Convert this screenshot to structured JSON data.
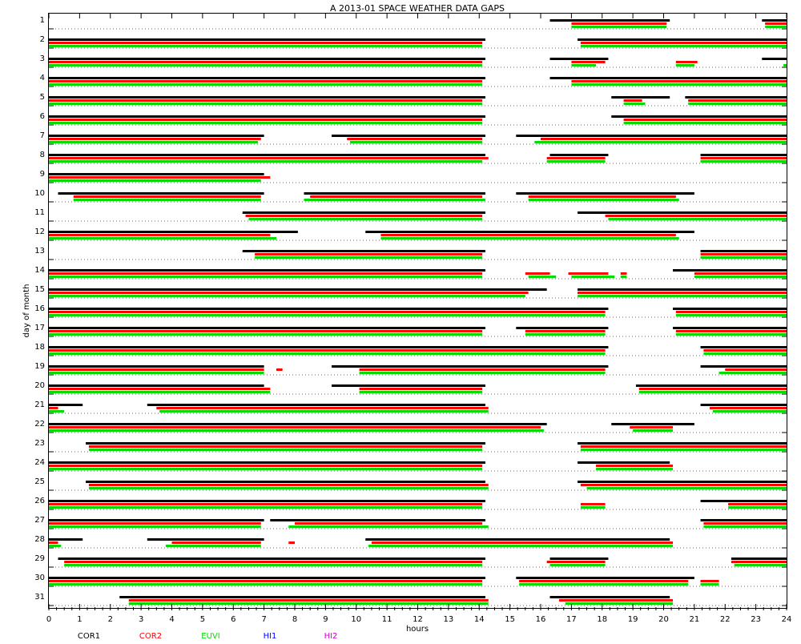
{
  "chart_data": {
    "type": "gantt",
    "title": "A  2013-01 SPACE WEATHER DATA GAPS",
    "xlabel": "hours",
    "ylabel": "day of month",
    "xlim": [
      0,
      24
    ],
    "x_ticks": [
      0,
      1,
      2,
      3,
      4,
      5,
      6,
      7,
      8,
      9,
      10,
      11,
      12,
      13,
      14,
      15,
      16,
      17,
      18,
      19,
      20,
      21,
      22,
      23,
      24
    ],
    "days": [
      1,
      2,
      3,
      4,
      5,
      6,
      7,
      8,
      9,
      10,
      11,
      12,
      13,
      14,
      15,
      16,
      17,
      18,
      19,
      20,
      21,
      22,
      23,
      24,
      25,
      26,
      27,
      28,
      29,
      30,
      31
    ],
    "grid": "dotted baseline per day",
    "legend_position": "bottom",
    "series": [
      {
        "name": "COR1",
        "color": "#000000"
      },
      {
        "name": "COR2",
        "color": "#ff0000"
      },
      {
        "name": "EUVI",
        "color": "#00dd00"
      },
      {
        "name": "HI1",
        "color": "#0000ff"
      },
      {
        "name": "HI2",
        "color": "#cc00cc"
      }
    ],
    "segments": {
      "1": {
        "COR1": [
          [
            16.3,
            20.2
          ],
          [
            23.2,
            24
          ]
        ],
        "COR2": [
          [
            17.0,
            20.1
          ],
          [
            23.3,
            24
          ]
        ],
        "EUVI": [
          [
            17.0,
            20.1
          ],
          [
            23.3,
            24
          ]
        ]
      },
      "2": {
        "COR1": [
          [
            0,
            14.2
          ],
          [
            17.2,
            24
          ]
        ],
        "COR2": [
          [
            0,
            14.1
          ],
          [
            17.3,
            24
          ]
        ],
        "EUVI": [
          [
            0,
            14.1
          ],
          [
            17.3,
            24
          ]
        ]
      },
      "3": {
        "COR1": [
          [
            0,
            14.2
          ],
          [
            16.3,
            18.2
          ],
          [
            23.2,
            24
          ]
        ],
        "COR2": [
          [
            0,
            14.1
          ],
          [
            17.0,
            18.1
          ],
          [
            20.4,
            21.1
          ]
        ],
        "EUVI": [
          [
            0,
            14.1
          ],
          [
            17.0,
            17.8
          ],
          [
            20.4,
            21.0
          ],
          [
            23.9,
            24
          ]
        ]
      },
      "4": {
        "COR1": [
          [
            0,
            14.2
          ],
          [
            16.3,
            24
          ]
        ],
        "COR2": [
          [
            0,
            14.1
          ],
          [
            17.0,
            24
          ]
        ],
        "EUVI": [
          [
            0,
            14.1
          ],
          [
            17.0,
            24
          ]
        ]
      },
      "5": {
        "COR1": [
          [
            0,
            14.2
          ],
          [
            18.3,
            20.2
          ],
          [
            20.7,
            24
          ]
        ],
        "COR2": [
          [
            0,
            14.1
          ],
          [
            18.7,
            19.3
          ],
          [
            20.8,
            24
          ]
        ],
        "EUVI": [
          [
            0,
            14.1
          ],
          [
            18.7,
            19.4
          ],
          [
            20.8,
            24
          ]
        ]
      },
      "6": {
        "COR1": [
          [
            0,
            14.2
          ],
          [
            18.3,
            24
          ]
        ],
        "COR2": [
          [
            0,
            14.1
          ],
          [
            18.7,
            24
          ]
        ],
        "EUVI": [
          [
            0,
            14.1
          ],
          [
            18.7,
            24
          ]
        ]
      },
      "7": {
        "COR1": [
          [
            0,
            7.0
          ],
          [
            9.2,
            14.2
          ],
          [
            15.2,
            24
          ]
        ],
        "COR2": [
          [
            0,
            6.9
          ],
          [
            9.7,
            14.1
          ],
          [
            16.0,
            24
          ]
        ],
        "EUVI": [
          [
            0,
            6.8
          ],
          [
            9.8,
            14.1
          ],
          [
            15.8,
            24
          ]
        ]
      },
      "8": {
        "COR1": [
          [
            0,
            14.2
          ],
          [
            16.3,
            18.2
          ],
          [
            21.2,
            24
          ]
        ],
        "COR2": [
          [
            0,
            14.3
          ],
          [
            16.2,
            18.1
          ],
          [
            21.2,
            24
          ]
        ],
        "EUVI": [
          [
            0,
            14.1
          ],
          [
            16.2,
            18.1
          ],
          [
            21.2,
            24
          ]
        ]
      },
      "9": {
        "COR1": [
          [
            0,
            7.0
          ]
        ],
        "COR2": [
          [
            0,
            7.2
          ]
        ],
        "EUVI": [
          [
            0,
            6.9
          ]
        ]
      },
      "10": {
        "COR1": [
          [
            0.3,
            7.0
          ],
          [
            8.3,
            14.2
          ],
          [
            15.2,
            21.0
          ]
        ],
        "COR2": [
          [
            0.8,
            6.9
          ],
          [
            8.5,
            14.1
          ],
          [
            15.6,
            20.4
          ]
        ],
        "EUVI": [
          [
            0.8,
            6.9
          ],
          [
            8.3,
            14.2
          ],
          [
            15.6,
            20.5
          ]
        ]
      },
      "11": {
        "COR1": [
          [
            6.3,
            14.2
          ],
          [
            17.2,
            24
          ]
        ],
        "COR2": [
          [
            6.4,
            14.1
          ],
          [
            18.1,
            24
          ]
        ],
        "EUVI": [
          [
            6.5,
            14.1
          ],
          [
            18.2,
            24
          ]
        ]
      },
      "12": {
        "COR1": [
          [
            0,
            8.1
          ],
          [
            10.3,
            21.0
          ]
        ],
        "COR2": [
          [
            0,
            7.2
          ],
          [
            10.8,
            20.4
          ]
        ],
        "EUVI": [
          [
            0,
            7.4
          ],
          [
            10.8,
            20.5
          ]
        ]
      },
      "13": {
        "COR1": [
          [
            6.3,
            14.2
          ],
          [
            21.2,
            24
          ]
        ],
        "COR2": [
          [
            6.7,
            14.1
          ],
          [
            21.2,
            24
          ]
        ],
        "EUVI": [
          [
            6.7,
            14.1
          ],
          [
            21.2,
            24
          ]
        ]
      },
      "14": {
        "COR1": [
          [
            0,
            14.2
          ],
          [
            20.3,
            24
          ]
        ],
        "COR2": [
          [
            0,
            14.1
          ],
          [
            15.5,
            16.3
          ],
          [
            16.9,
            18.2
          ],
          [
            18.6,
            18.8
          ],
          [
            21.0,
            24
          ]
        ],
        "EUVI": [
          [
            0,
            14.1
          ],
          [
            15.6,
            16.5
          ],
          [
            17.0,
            18.4
          ],
          [
            18.6,
            18.8
          ],
          [
            21.0,
            24
          ]
        ]
      },
      "15": {
        "COR1": [
          [
            0,
            16.2
          ],
          [
            17.2,
            24
          ]
        ],
        "COR2": [
          [
            0,
            15.6
          ],
          [
            17.2,
            24
          ]
        ],
        "EUVI": [
          [
            0,
            15.5
          ],
          [
            17.2,
            24
          ]
        ]
      },
      "16": {
        "COR1": [
          [
            0,
            18.2
          ],
          [
            20.3,
            24
          ]
        ],
        "COR2": [
          [
            0,
            18.1
          ],
          [
            20.4,
            24
          ]
        ],
        "EUVI": [
          [
            0,
            18.1
          ],
          [
            20.4,
            24
          ]
        ]
      },
      "17": {
        "COR1": [
          [
            0,
            14.2
          ],
          [
            15.2,
            18.2
          ],
          [
            20.3,
            24
          ]
        ],
        "COR2": [
          [
            0,
            14.1
          ],
          [
            15.5,
            18.1
          ],
          [
            20.4,
            24
          ]
        ],
        "EUVI": [
          [
            0,
            14.1
          ],
          [
            15.5,
            18.1
          ],
          [
            20.4,
            24
          ]
        ]
      },
      "18": {
        "COR1": [
          [
            0,
            18.2
          ],
          [
            21.2,
            24
          ]
        ],
        "COR2": [
          [
            0,
            18.1
          ],
          [
            21.3,
            24
          ]
        ],
        "EUVI": [
          [
            0,
            18.1
          ],
          [
            21.3,
            24
          ]
        ]
      },
      "19": {
        "COR1": [
          [
            0,
            7.0
          ],
          [
            9.2,
            18.2
          ],
          [
            21.2,
            24
          ]
        ],
        "COR2": [
          [
            0,
            7.0
          ],
          [
            7.4,
            7.6
          ],
          [
            10.1,
            18.1
          ],
          [
            22.0,
            24
          ]
        ],
        "EUVI": [
          [
            0,
            7.0
          ],
          [
            10.1,
            18.1
          ],
          [
            21.8,
            24
          ]
        ]
      },
      "20": {
        "COR1": [
          [
            0,
            7.0
          ],
          [
            9.2,
            14.2
          ],
          [
            19.1,
            24
          ]
        ],
        "COR2": [
          [
            0,
            7.2
          ],
          [
            10.1,
            14.1
          ],
          [
            19.2,
            24
          ]
        ],
        "EUVI": [
          [
            0,
            7.2
          ],
          [
            10.1,
            14.1
          ],
          [
            19.2,
            24
          ]
        ]
      },
      "21": {
        "COR1": [
          [
            0,
            1.1
          ],
          [
            3.2,
            14.2
          ],
          [
            21.2,
            24
          ]
        ],
        "COR2": [
          [
            0,
            0.3
          ],
          [
            3.5,
            14.3
          ],
          [
            21.5,
            24
          ]
        ],
        "EUVI": [
          [
            0,
            0.5
          ],
          [
            3.6,
            14.3
          ],
          [
            21.6,
            24
          ]
        ]
      },
      "22": {
        "COR1": [
          [
            0,
            16.2
          ],
          [
            18.3,
            21.0
          ]
        ],
        "COR2": [
          [
            0,
            16.0
          ],
          [
            18.9,
            20.3
          ]
        ],
        "EUVI": [
          [
            0,
            16.1
          ],
          [
            19.0,
            20.3
          ]
        ]
      },
      "23": {
        "COR1": [
          [
            1.2,
            14.2
          ],
          [
            17.2,
            24
          ]
        ],
        "COR2": [
          [
            1.3,
            14.1
          ],
          [
            17.3,
            24
          ]
        ],
        "EUVI": [
          [
            1.3,
            14.1
          ],
          [
            17.3,
            24
          ]
        ]
      },
      "24": {
        "COR1": [
          [
            0,
            14.2
          ],
          [
            17.2,
            20.2
          ]
        ],
        "COR2": [
          [
            0,
            14.1
          ],
          [
            17.8,
            20.3
          ]
        ],
        "EUVI": [
          [
            0,
            14.1
          ],
          [
            17.8,
            20.3
          ]
        ]
      },
      "25": {
        "COR1": [
          [
            1.2,
            14.2
          ],
          [
            17.2,
            24
          ]
        ],
        "COR2": [
          [
            1.3,
            14.3
          ],
          [
            17.3,
            24
          ]
        ],
        "EUVI": [
          [
            1.3,
            14.3
          ],
          [
            17.5,
            24
          ]
        ]
      },
      "26": {
        "COR1": [
          [
            0,
            14.2
          ],
          [
            21.2,
            24
          ]
        ],
        "COR2": [
          [
            0,
            14.1
          ],
          [
            17.3,
            18.1
          ],
          [
            22.1,
            24
          ]
        ],
        "EUVI": [
          [
            0,
            14.1
          ],
          [
            17.3,
            18.1
          ],
          [
            22.1,
            24
          ]
        ]
      },
      "27": {
        "COR1": [
          [
            0,
            7.0
          ],
          [
            7.2,
            14.2
          ],
          [
            21.2,
            24
          ]
        ],
        "COR2": [
          [
            0,
            6.9
          ],
          [
            8.0,
            14.1
          ],
          [
            21.3,
            24
          ]
        ],
        "EUVI": [
          [
            0,
            6.9
          ],
          [
            7.8,
            14.3
          ],
          [
            21.3,
            24
          ]
        ]
      },
      "28": {
        "COR1": [
          [
            0,
            1.1
          ],
          [
            3.2,
            7.0
          ],
          [
            10.3,
            20.2
          ]
        ],
        "COR2": [
          [
            0,
            0.3
          ],
          [
            4.0,
            6.9
          ],
          [
            7.8,
            8.0
          ],
          [
            10.5,
            20.3
          ]
        ],
        "EUVI": [
          [
            0,
            0.4
          ],
          [
            3.8,
            6.9
          ],
          [
            10.4,
            20.3
          ]
        ]
      },
      "29": {
        "COR1": [
          [
            0.3,
            14.2
          ],
          [
            16.3,
            18.2
          ],
          [
            22.2,
            24
          ]
        ],
        "COR2": [
          [
            0.5,
            14.1
          ],
          [
            16.2,
            18.1
          ],
          [
            22.2,
            24
          ]
        ],
        "EUVI": [
          [
            0.5,
            14.1
          ],
          [
            16.3,
            18.1
          ],
          [
            22.3,
            24
          ]
        ]
      },
      "30": {
        "COR1": [
          [
            0,
            14.2
          ],
          [
            15.2,
            21.0
          ]
        ],
        "COR2": [
          [
            0,
            14.1
          ],
          [
            15.3,
            20.8
          ],
          [
            21.2,
            21.8
          ]
        ],
        "EUVI": [
          [
            0,
            14.1
          ],
          [
            15.3,
            20.8
          ],
          [
            21.2,
            21.8
          ]
        ]
      },
      "31": {
        "COR1": [
          [
            2.3,
            14.2
          ],
          [
            16.3,
            20.2
          ]
        ],
        "COR2": [
          [
            2.6,
            14.3
          ],
          [
            16.6,
            20.3
          ]
        ],
        "EUVI": [
          [
            2.6,
            14.3
          ],
          [
            16.8,
            20.3
          ]
        ]
      }
    }
  }
}
